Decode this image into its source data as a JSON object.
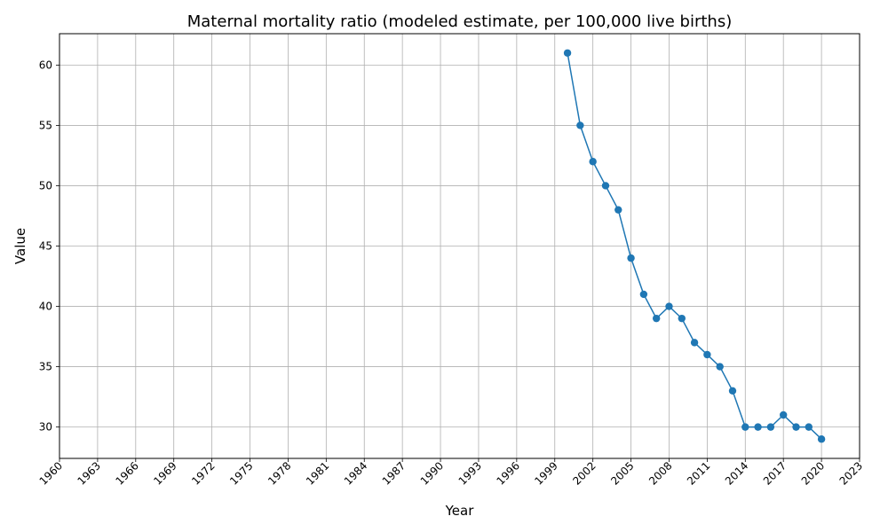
{
  "chart_data": {
    "type": "line",
    "title": "Maternal mortality ratio (modeled estimate, per 100,000 live births)",
    "xlabel": "Year",
    "ylabel": "Value",
    "xlim": [
      1960,
      2023
    ],
    "ylim": [
      27.4,
      62.6
    ],
    "x_ticks": [
      1960,
      1963,
      1966,
      1969,
      1972,
      1975,
      1978,
      1981,
      1984,
      1987,
      1990,
      1993,
      1996,
      1999,
      2002,
      2005,
      2008,
      2011,
      2014,
      2017,
      2020,
      2023
    ],
    "y_ticks": [
      30,
      35,
      40,
      45,
      50,
      55,
      60
    ],
    "grid": true,
    "line_color": "#1f77b4",
    "x": [
      2000,
      2001,
      2002,
      2003,
      2004,
      2005,
      2006,
      2007,
      2008,
      2009,
      2010,
      2011,
      2012,
      2013,
      2014,
      2015,
      2016,
      2017,
      2018,
      2019,
      2020
    ],
    "values": [
      61,
      55,
      52,
      50,
      48,
      44,
      41,
      39,
      40,
      39,
      37,
      36,
      35,
      33,
      30,
      30,
      30,
      31,
      30,
      30,
      29
    ]
  }
}
